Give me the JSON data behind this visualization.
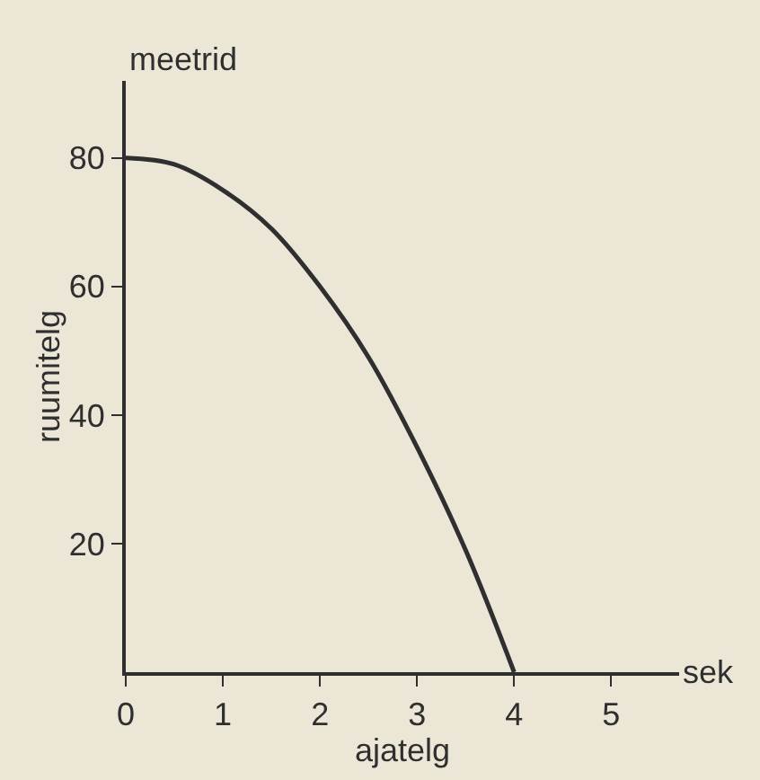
{
  "chart_data": {
    "type": "line",
    "xlabel": "ajatelg",
    "ylabel": "ruumitelg",
    "annotations": [
      "meetrid",
      "sek"
    ],
    "x": [
      0,
      0.5,
      1,
      1.5,
      2,
      2.5,
      3,
      3.5,
      4
    ],
    "series": [
      {
        "color": "#2f2f2f",
        "values": [
          80,
          79,
          75,
          69,
          60,
          49,
          35,
          19,
          0
        ]
      }
    ],
    "xlim": [
      0,
      5.7
    ],
    "ylim": [
      0,
      92
    ],
    "xticks": [
      0,
      1,
      2,
      3,
      4,
      5
    ],
    "yticks": [
      20,
      40,
      60,
      80
    ],
    "grid": false,
    "legend": false,
    "marker": "none",
    "line_style": "solid"
  }
}
